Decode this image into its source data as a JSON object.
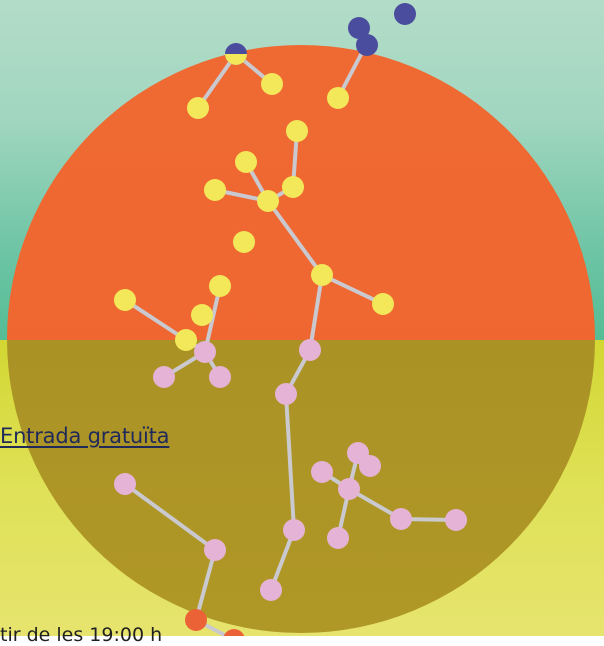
{
  "link": {
    "label": "Entrada gratuïta"
  },
  "footer": {
    "text": "tir de les 19:00 h"
  },
  "colors": {
    "sky_top": "#b3dcc8",
    "sky_bottom": "#55bd96",
    "ground": "#dfe157",
    "sun_top": "#ee6430",
    "sun_bottom": "#f4862a",
    "sun_lower_half": "#a88f25",
    "node_yellow": "#f2e85a",
    "node_pink": "#e5b3d6",
    "node_blue": "#4a4c9e",
    "node_orange": "#ec6237",
    "edge": "#c9c9cf"
  },
  "icons": [
    "sun-circle-graphic",
    "molecule-network-graphic"
  ]
}
